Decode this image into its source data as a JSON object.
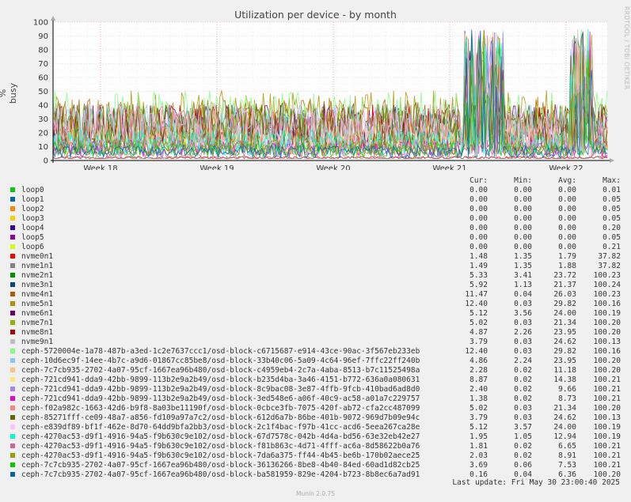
{
  "chart_data": {
    "type": "line",
    "title": "Utilization per device - by month",
    "ylabel": "% busy",
    "ylim": [
      0,
      100
    ],
    "yticks": [
      0,
      10,
      20,
      30,
      40,
      50,
      60,
      70,
      80,
      90,
      100
    ],
    "xticks": [
      "Week 18",
      "Week 19",
      "Week 20",
      "Week 21",
      "Week 22"
    ],
    "grid": true,
    "legend_columns": [
      "Cur:",
      "Min:",
      "Avg:",
      "Max:"
    ],
    "series": [
      {
        "name": "loop0",
        "color": "#00cc00",
        "cur": "0.00",
        "min": "0.00",
        "avg": "0.00",
        "max": "0.01"
      },
      {
        "name": "loop1",
        "color": "#0066b3",
        "cur": "0.00",
        "min": "0.00",
        "avg": "0.00",
        "max": "0.05"
      },
      {
        "name": "loop2",
        "color": "#ff8000",
        "cur": "0.00",
        "min": "0.00",
        "avg": "0.00",
        "max": "0.05"
      },
      {
        "name": "loop3",
        "color": "#ffcc00",
        "cur": "0.00",
        "min": "0.00",
        "avg": "0.00",
        "max": "0.05"
      },
      {
        "name": "loop4",
        "color": "#330099",
        "cur": "0.00",
        "min": "0.00",
        "avg": "0.00",
        "max": "0.20"
      },
      {
        "name": "loop5",
        "color": "#990099",
        "cur": "0.00",
        "min": "0.00",
        "avg": "0.00",
        "max": "0.05"
      },
      {
        "name": "loop6",
        "color": "#ccff00",
        "cur": "0.00",
        "min": "0.00",
        "avg": "0.00",
        "max": "0.21"
      },
      {
        "name": "nvme0n1",
        "color": "#ff0000",
        "cur": "1.48",
        "min": "1.35",
        "avg": "1.79",
        "max": "37.82"
      },
      {
        "name": "nvme1n1",
        "color": "#808080",
        "cur": "1.49",
        "min": "1.35",
        "avg": "1.88",
        "max": "37.82"
      },
      {
        "name": "nvme2n1",
        "color": "#008f00",
        "cur": "5.33",
        "min": "3.41",
        "avg": "23.72",
        "max": "100.23"
      },
      {
        "name": "nvme3n1",
        "color": "#00487d",
        "cur": "5.92",
        "min": "1.13",
        "avg": "21.37",
        "max": "100.24"
      },
      {
        "name": "nvme4n1",
        "color": "#b35a00",
        "cur": "11.47",
        "min": "0.04",
        "avg": "26.03",
        "max": "100.23"
      },
      {
        "name": "nvme5n1",
        "color": "#b38f00",
        "cur": "12.40",
        "min": "0.03",
        "avg": "29.82",
        "max": "100.16"
      },
      {
        "name": "nvme6n1",
        "color": "#6b006b",
        "cur": "5.12",
        "min": "3.56",
        "avg": "24.00",
        "max": "100.19"
      },
      {
        "name": "nvme7n1",
        "color": "#8fb300",
        "cur": "5.02",
        "min": "0.03",
        "avg": "21.34",
        "max": "100.20"
      },
      {
        "name": "nvme8n1",
        "color": "#b30000",
        "cur": "4.87",
        "min": "2.26",
        "avg": "23.95",
        "max": "100.20"
      },
      {
        "name": "nvme9n1",
        "color": "#bebebe",
        "cur": "3.79",
        "min": "0.03",
        "avg": "24.62",
        "max": "100.13"
      },
      {
        "name": "ceph-5720004e-1a78-487b-a3ed-1c2e7637ccc1/osd-block-c6715687-e914-43ce-90ac-3f567eb233eb",
        "color": "#80ff80",
        "cur": "12.40",
        "min": "0.03",
        "avg": "29.82",
        "max": "100.16"
      },
      {
        "name": "ceph-10d6ec9f-14ee-4b7c-a9d6-01867cc85be8/osd-block-33b40c06-5a09-4c64-96ef-7ffc22ff240b",
        "color": "#80c9ff",
        "cur": "4.86",
        "min": "2.24",
        "avg": "23.95",
        "max": "100.20"
      },
      {
        "name": "ceph-7c7cb935-2702-4a07-95cf-1667ea96b480/osd-block-c4959eb4-2c7a-4aba-8513-b7c11525498a",
        "color": "#ffc080",
        "cur": "2.28",
        "min": "0.02",
        "avg": "11.18",
        "max": "100.20"
      },
      {
        "name": "ceph-721cd941-dda9-42bb-9899-113b2e9a2b49/osd-block-b235d4ba-3a46-4151-b772-636a0a080631",
        "color": "#ffe680",
        "cur": "8.87",
        "min": "0.02",
        "avg": "14.38",
        "max": "100.21"
      },
      {
        "name": "ceph-721cd941-dda9-42bb-9899-113b2e9a2b49/osd-block-8c9bac08-3e87-4ffb-9fcb-410bad6ad8d0",
        "color": "#aa80ff",
        "cur": "2.40",
        "min": "0.02",
        "avg": "9.66",
        "max": "100.21"
      },
      {
        "name": "ceph-721cd941-dda9-42bb-9899-113b2e9a2b49/osd-block-3ed548e6-a06f-40c9-ac58-a01a7c229757",
        "color": "#ee00cc",
        "cur": "1.38",
        "min": "0.02",
        "avg": "8.73",
        "max": "100.21"
      },
      {
        "name": "ceph-f02a982c-1663-42d6-b9f8-8a03be11190f/osd-block-0cbce3fb-7075-420f-ab72-cfa2cc487099",
        "color": "#ff8080",
        "cur": "5.02",
        "min": "0.03",
        "avg": "21.34",
        "max": "100.20"
      },
      {
        "name": "ceph-85271fff-ce09-48a7-a856-fd109a97a7c2/osd-block-612d6a7b-86be-401b-9072-969d7b09e94c",
        "color": "#666600",
        "cur": "3.79",
        "min": "0.03",
        "avg": "24.62",
        "max": "100.13"
      },
      {
        "name": "ceph-e839df89-bf1f-462e-8d70-64dd9bfa2bb3/osd-block-2c1f4bac-f97b-41cc-acd6-5eea267ca28e",
        "color": "#ffbfff",
        "cur": "5.12",
        "min": "3.57",
        "avg": "24.00",
        "max": "100.19"
      },
      {
        "name": "ceph-4270ac53-d9f1-4916-94a5-f9b630c9e102/osd-block-67d7578c-042b-4d4a-bd56-63e32eb42e27",
        "color": "#00ffcc",
        "cur": "1.95",
        "min": "1.05",
        "avg": "12.94",
        "max": "100.19"
      },
      {
        "name": "ceph-4270ac53-d9f1-4916-94a5-f9b630c9e102/osd-block-f81b863c-4d71-4fff-ac6a-8d58622b0a76",
        "color": "#cc6699",
        "cur": "1.81",
        "min": "0.02",
        "avg": "6.65",
        "max": "100.21"
      },
      {
        "name": "ceph-4270ac53-d9f1-4916-94a5-f9b630c9e102/osd-block-7da6a375-ff44-4b45-be6b-170b02aece25",
        "color": "#999900",
        "cur": "2.03",
        "min": "0.02",
        "avg": "8.91",
        "max": "100.21"
      },
      {
        "name": "ceph-7c7cb935-2702-4a07-95cf-1667ea96b480/osd-block-36136266-8be8-4b40-84ed-60ad1d82cb25",
        "color": "#00cc00",
        "cur": "3.69",
        "min": "0.06",
        "avg": "7.53",
        "max": "100.21"
      },
      {
        "name": "ceph-7c7cb935-2702-4a07-95cf-1667ea96b480/osd-block-ba581959-829e-4204-b723-8b8ec6a7ad91",
        "color": "#0066b3",
        "cur": "0.16",
        "min": "0.04",
        "avg": "6.36",
        "max": "100.20"
      }
    ]
  },
  "watermark": "RRDTOOL / TOBI OETIKER",
  "last_update": "Last update: Fri May 30 23:00:40 2025",
  "version": "Munin 2.0.75"
}
